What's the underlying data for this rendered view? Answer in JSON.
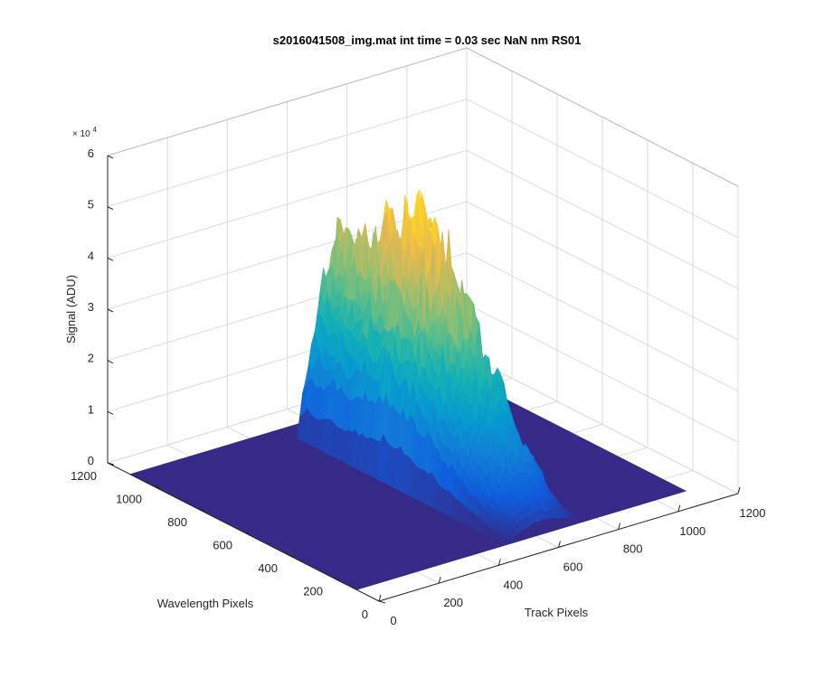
{
  "chart_data": {
    "type": "surface",
    "title": "s2016041508_img.mat int time = 0.03 sec  NaN nm RS01",
    "xlabel": "Track Pixels",
    "ylabel": "Wavelength Pixels",
    "zlabel": "Signal (ADU)",
    "z_exponent_label": "× 10",
    "z_exponent_power": "4",
    "xlim": [
      0,
      1200
    ],
    "ylim": [
      0,
      1200
    ],
    "zlim": [
      0,
      60000
    ],
    "x_ticks": [
      {
        "value": 0,
        "label": "0"
      },
      {
        "value": 200,
        "label": "200"
      },
      {
        "value": 400,
        "label": "400"
      },
      {
        "value": 600,
        "label": "600"
      },
      {
        "value": 800,
        "label": "800"
      },
      {
        "value": 1000,
        "label": "1000"
      },
      {
        "value": 1200,
        "label": "1200"
      }
    ],
    "y_ticks": [
      {
        "value": 0,
        "label": "0"
      },
      {
        "value": 200,
        "label": "200"
      },
      {
        "value": 400,
        "label": "400"
      },
      {
        "value": 600,
        "label": "600"
      },
      {
        "value": 800,
        "label": "800"
      },
      {
        "value": 1000,
        "label": "1000"
      },
      {
        "value": 1200,
        "label": "1200"
      }
    ],
    "z_ticks": [
      {
        "value": 0,
        "label": "0"
      },
      {
        "value": 10000,
        "label": "1"
      },
      {
        "value": 20000,
        "label": "2"
      },
      {
        "value": 30000,
        "label": "3"
      },
      {
        "value": 40000,
        "label": "4"
      },
      {
        "value": 50000,
        "label": "5"
      },
      {
        "value": 60000,
        "label": "6"
      }
    ],
    "grid": true,
    "colormap": "parula",
    "data_extent": {
      "track_min": 0,
      "track_max": 1100,
      "wavelength_min": 100,
      "wavelength_max": 1100
    },
    "signal_region": {
      "track_start": 500,
      "track_end": 760,
      "wavelength_start": 100,
      "wavelength_end": 1024
    },
    "peak_signal": 55000,
    "baseline_signal": 0,
    "spectrum_profile": [
      {
        "wavelength": 100,
        "signal": 3000
      },
      {
        "wavelength": 200,
        "signal": 12000
      },
      {
        "wavelength": 300,
        "signal": 22000
      },
      {
        "wavelength": 400,
        "signal": 33000
      },
      {
        "wavelength": 500,
        "signal": 43000
      },
      {
        "wavelength": 600,
        "signal": 52000
      },
      {
        "wavelength": 650,
        "signal": 55000
      },
      {
        "wavelength": 700,
        "signal": 50000
      },
      {
        "wavelength": 800,
        "signal": 44000
      },
      {
        "wavelength": 900,
        "signal": 42000
      },
      {
        "wavelength": 1000,
        "signal": 38000
      },
      {
        "wavelength": 1024,
        "signal": 30000
      }
    ],
    "track_profile": [
      {
        "track": 500,
        "relative": 0.0
      },
      {
        "track": 520,
        "relative": 0.35
      },
      {
        "track": 560,
        "relative": 0.75
      },
      {
        "track": 610,
        "relative": 1.0
      },
      {
        "track": 660,
        "relative": 0.9
      },
      {
        "track": 710,
        "relative": 0.55
      },
      {
        "track": 740,
        "relative": 0.2
      },
      {
        "track": 760,
        "relative": 0.0
      }
    ]
  }
}
